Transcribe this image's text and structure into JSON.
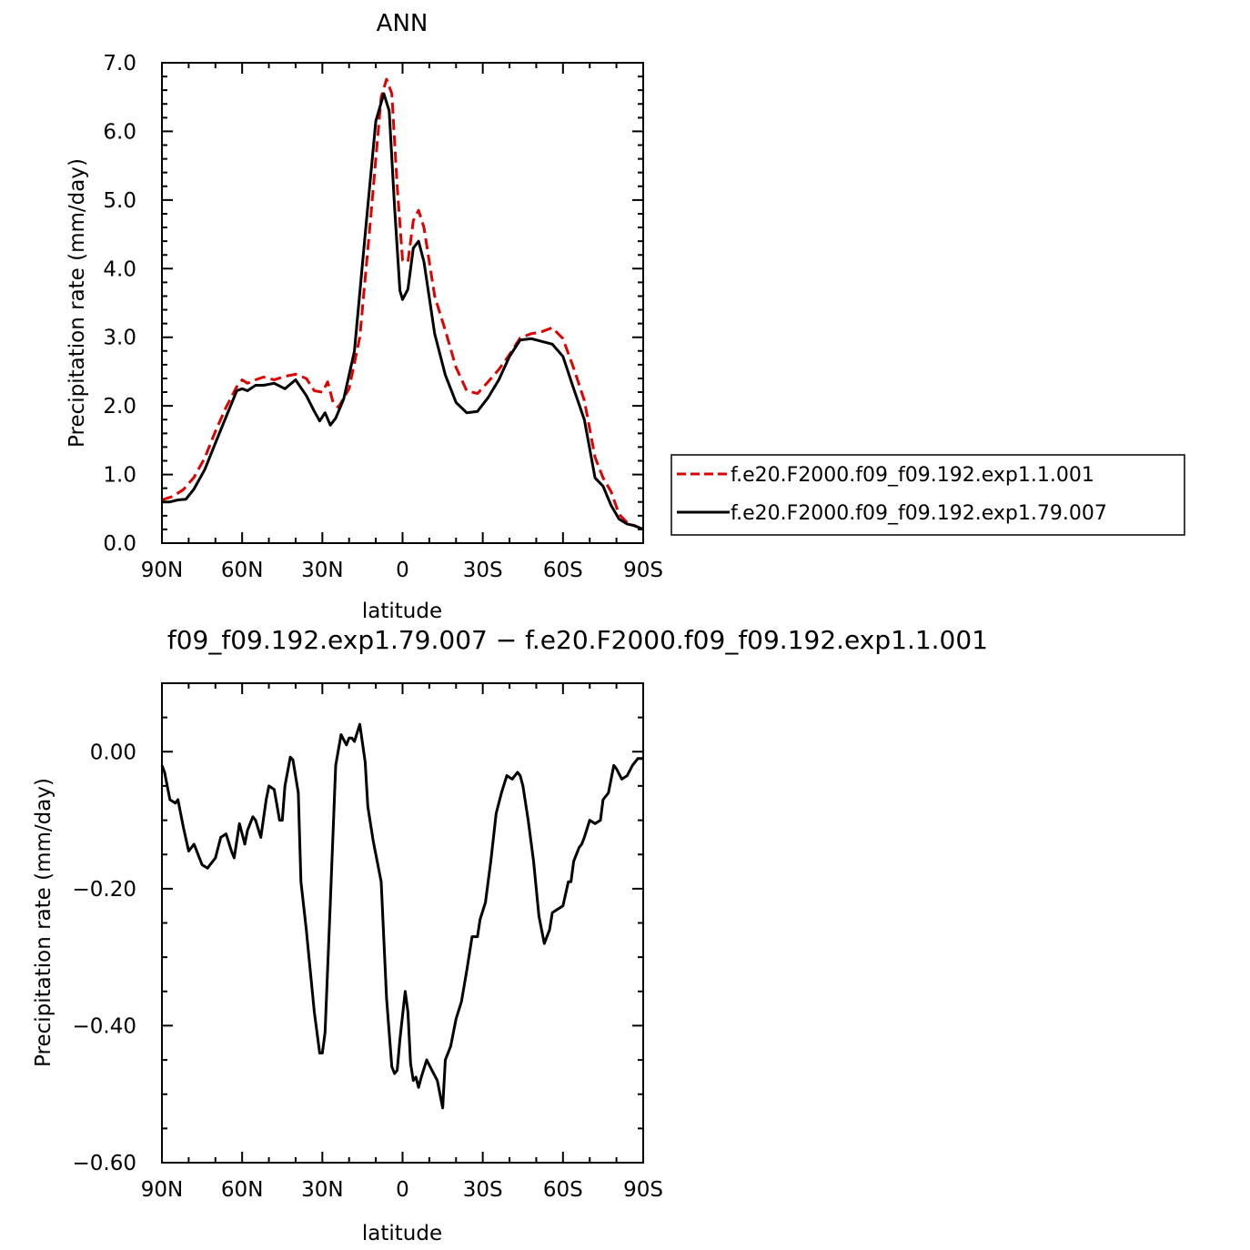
{
  "chart_data": [
    {
      "type": "line",
      "title": "ANN",
      "xlabel": "latitude",
      "ylabel": "Precipitation rate (mm/day)",
      "xlim": [
        90,
        -90
      ],
      "ylim": [
        0,
        7
      ],
      "yticks": [
        "0.0",
        "1.0",
        "2.0",
        "3.0",
        "4.0",
        "5.0",
        "6.0",
        "7.0"
      ],
      "ytick_values": [
        0,
        1,
        2,
        3,
        4,
        5,
        6,
        7
      ],
      "xticks": [
        "90N",
        "60N",
        "30N",
        "0",
        "30S",
        "60S",
        "90S"
      ],
      "xtick_values": [
        90,
        60,
        30,
        0,
        -30,
        -60,
        -90
      ],
      "legend_position": "right",
      "series": [
        {
          "name": "f.e20.F2000.f09_f09.192.exp1.1.001",
          "color": "#e00000",
          "dash": "dashed",
          "x": [
            90,
            86,
            82,
            78,
            74,
            70,
            66,
            62,
            60,
            58,
            55,
            52,
            48,
            44,
            40,
            36,
            33,
            30,
            28,
            26,
            24,
            20,
            16,
            12,
            8,
            6,
            4,
            2,
            0,
            -2,
            -4,
            -6,
            -8,
            -12,
            -16,
            -20,
            -24,
            -28,
            -32,
            -36,
            -40,
            -44,
            -48,
            -52,
            -56,
            -60,
            -64,
            -68,
            -72,
            -75,
            -78,
            -81,
            -84,
            -87,
            -90
          ],
          "y": [
            0.63,
            0.68,
            0.78,
            0.96,
            1.24,
            1.63,
            1.98,
            2.28,
            2.38,
            2.33,
            2.38,
            2.42,
            2.38,
            2.43,
            2.46,
            2.4,
            2.22,
            2.2,
            2.35,
            2.05,
            1.98,
            2.25,
            3.0,
            4.7,
            6.5,
            6.76,
            6.55,
            5.2,
            4.12,
            4.1,
            4.7,
            4.85,
            4.6,
            3.6,
            3.1,
            2.56,
            2.22,
            2.18,
            2.35,
            2.53,
            2.75,
            2.99,
            3.05,
            3.08,
            3.14,
            2.98,
            2.55,
            2.08,
            1.25,
            0.95,
            0.75,
            0.42,
            0.3,
            0.25,
            0.2
          ]
        },
        {
          "name": "f.e20.F2000.f09_f09.192.exp1.79.007",
          "color": "#000000",
          "dash": "solid",
          "x": [
            90,
            87,
            84,
            81,
            78,
            74,
            70,
            66,
            62,
            60,
            58,
            55,
            52,
            48,
            44,
            40,
            36,
            33,
            31,
            29,
            27,
            25,
            22,
            18,
            14,
            10,
            7,
            5,
            3,
            1,
            0,
            -2,
            -4,
            -6,
            -8,
            -12,
            -16,
            -20,
            -24,
            -28,
            -32,
            -36,
            -40,
            -44,
            -48,
            -52,
            -56,
            -60,
            -64,
            -68,
            -72,
            -75,
            -78,
            -81,
            -84,
            -87,
            -90
          ],
          "y": [
            0.6,
            0.6,
            0.63,
            0.64,
            0.79,
            1.07,
            1.46,
            1.84,
            2.22,
            2.25,
            2.22,
            2.3,
            2.3,
            2.33,
            2.25,
            2.38,
            2.15,
            1.92,
            1.78,
            1.9,
            1.72,
            1.82,
            2.1,
            2.8,
            4.5,
            6.15,
            6.55,
            6.3,
            4.9,
            3.68,
            3.55,
            3.7,
            4.3,
            4.4,
            4.1,
            3.05,
            2.45,
            2.05,
            1.9,
            1.92,
            2.12,
            2.38,
            2.72,
            2.96,
            2.98,
            2.94,
            2.9,
            2.72,
            2.25,
            1.8,
            0.95,
            0.83,
            0.55,
            0.35,
            0.28,
            0.25,
            0.2
          ]
        }
      ]
    },
    {
      "type": "line",
      "title": "f09_f09.192.exp1.79.007 − f.e20.F2000.f09_f09.192.exp1.1.001",
      "xlabel": "latitude",
      "ylabel": "Precipitation rate (mm/day)",
      "xlim": [
        90,
        -90
      ],
      "ylim": [
        -0.6,
        0.1
      ],
      "yticks": [
        "0.00",
        "−0.20",
        "−0.40",
        "−0.60"
      ],
      "ytick_values": [
        0,
        -0.2,
        -0.4,
        -0.6
      ],
      "xticks": [
        "90N",
        "60N",
        "30N",
        "0",
        "30S",
        "60S",
        "90S"
      ],
      "xtick_values": [
        90,
        60,
        30,
        0,
        -30,
        -60,
        -90
      ],
      "series": [
        {
          "color": "#000000",
          "dash": "solid",
          "x": [
            90,
            89,
            87,
            85,
            84,
            82,
            80,
            78,
            75,
            73,
            70,
            68,
            66,
            64,
            63,
            61,
            59,
            58,
            56,
            55,
            53,
            51,
            50,
            48,
            46,
            45,
            44,
            42,
            41,
            39,
            38,
            36,
            35,
            33,
            31,
            30,
            29,
            27,
            25,
            23,
            21,
            20,
            19,
            18,
            16,
            14,
            13,
            11,
            8,
            6,
            5,
            4,
            3,
            2,
            1,
            -1,
            -2,
            -3,
            -4,
            -5,
            -6,
            -7,
            -9,
            -11,
            -13,
            -15,
            -16,
            -18,
            -20,
            -22,
            -24,
            -26,
            -28,
            -29,
            -31,
            -33,
            -35,
            -37,
            -39,
            -41,
            -43,
            -44,
            -45,
            -47,
            -49,
            -51,
            -53,
            -55,
            -56,
            -58,
            -60,
            -62,
            -63,
            -64,
            -66,
            -67,
            -68,
            -70,
            -72,
            -74,
            -75,
            -77,
            -79,
            -80,
            -82,
            -84,
            -86,
            -88,
            -90
          ],
          "y": [
            -0.02,
            -0.03,
            -0.07,
            -0.075,
            -0.07,
            -0.11,
            -0.145,
            -0.135,
            -0.165,
            -0.17,
            -0.155,
            -0.125,
            -0.12,
            -0.145,
            -0.155,
            -0.105,
            -0.135,
            -0.115,
            -0.095,
            -0.1,
            -0.125,
            -0.07,
            -0.05,
            -0.055,
            -0.1,
            -0.1,
            -0.05,
            -0.008,
            -0.012,
            -0.06,
            -0.19,
            -0.26,
            -0.3,
            -0.38,
            -0.44,
            -0.44,
            -0.41,
            -0.22,
            -0.02,
            0.025,
            0.01,
            0.02,
            0.02,
            0.015,
            0.04,
            -0.015,
            -0.08,
            -0.13,
            -0.19,
            -0.36,
            -0.41,
            -0.46,
            -0.47,
            -0.465,
            -0.42,
            -0.35,
            -0.38,
            -0.455,
            -0.48,
            -0.475,
            -0.49,
            -0.475,
            -0.45,
            -0.465,
            -0.48,
            -0.52,
            -0.45,
            -0.43,
            -0.39,
            -0.365,
            -0.32,
            -0.27,
            -0.27,
            -0.245,
            -0.22,
            -0.16,
            -0.09,
            -0.06,
            -0.035,
            -0.04,
            -0.03,
            -0.035,
            -0.05,
            -0.1,
            -0.16,
            -0.24,
            -0.28,
            -0.26,
            -0.235,
            -0.23,
            -0.225,
            -0.19,
            -0.19,
            -0.16,
            -0.14,
            -0.135,
            -0.125,
            -0.1,
            -0.105,
            -0.1,
            -0.07,
            -0.06,
            -0.02,
            -0.025,
            -0.04,
            -0.035,
            -0.02,
            -0.01,
            -0.01
          ]
        }
      ]
    }
  ]
}
